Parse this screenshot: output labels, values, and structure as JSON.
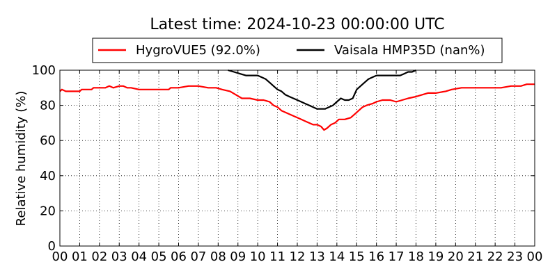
{
  "chart_data": {
    "type": "line",
    "title": "Latest time: 2024-10-23 00:00:00 UTC",
    "xlabel": "",
    "ylabel": "Relative humidity (%)",
    "xlim": [
      0,
      24
    ],
    "ylim": [
      0,
      100
    ],
    "x_ticks": [
      "00",
      "01",
      "02",
      "03",
      "04",
      "05",
      "06",
      "07",
      "08",
      "09",
      "10",
      "11",
      "12",
      "13",
      "14",
      "15",
      "16",
      "17",
      "18",
      "19",
      "20",
      "21",
      "22",
      "23",
      "00"
    ],
    "y_ticks": [
      0,
      20,
      40,
      60,
      80,
      100
    ],
    "grid": true,
    "legend_position": "top",
    "series": [
      {
        "name": "HygroVUE5 (92.0%)",
        "color": "#ff0000",
        "x": [
          0,
          0.1,
          0.3,
          0.5,
          1.0,
          1.1,
          1.6,
          1.7,
          2.3,
          2.5,
          2.7,
          3.0,
          3.2,
          3.4,
          3.6,
          4.0,
          4.2,
          4.5,
          5.0,
          5.5,
          5.6,
          6.0,
          6.5,
          7.0,
          7.5,
          7.9,
          8.2,
          8.6,
          8.9,
          9.2,
          9.6,
          10.0,
          10.3,
          10.6,
          10.8,
          11.0,
          11.2,
          11.4,
          11.6,
          11.8,
          12.0,
          12.2,
          12.4,
          12.6,
          12.8,
          13.0,
          13.2,
          13.35,
          13.5,
          13.7,
          13.9,
          14.1,
          14.4,
          14.7,
          14.9,
          15.1,
          15.3,
          15.5,
          15.8,
          16.0,
          16.3,
          16.7,
          17.0,
          17.3,
          17.6,
          18.0,
          18.3,
          18.6,
          19.0,
          19.5,
          19.8,
          20.3,
          21.0,
          21.8,
          22.3,
          22.8,
          23.3,
          23.6,
          24.0
        ],
        "y": [
          88,
          89,
          88,
          88,
          88,
          89,
          89,
          90,
          90,
          91,
          90,
          91,
          91,
          90,
          90,
          89,
          89,
          89,
          89,
          89,
          90,
          90,
          91,
          91,
          90,
          90,
          89,
          88,
          86,
          84,
          84,
          83,
          83,
          82,
          80,
          79,
          77,
          76,
          75,
          74,
          73,
          72,
          71,
          70,
          69,
          69,
          68,
          66,
          67,
          69,
          70,
          72,
          72,
          73,
          75,
          77,
          79,
          80,
          81,
          82,
          83,
          83,
          82,
          83,
          84,
          85,
          86,
          87,
          87,
          88,
          89,
          90,
          90,
          90,
          90,
          91,
          91,
          92,
          92
        ]
      },
      {
        "name": "Vaisala HMP35D (nan%)",
        "color": "#000000",
        "x": [
          8.5,
          8.8,
          9.1,
          9.4,
          9.7,
          10.0,
          10.2,
          10.4,
          10.6,
          10.8,
          11.0,
          11.2,
          11.4,
          11.6,
          11.8,
          12.0,
          12.2,
          12.4,
          12.6,
          12.8,
          13.0,
          13.2,
          13.4,
          13.6,
          13.8,
          14.0,
          14.2,
          14.4,
          14.6,
          14.8,
          15.0,
          15.3,
          15.6,
          15.8,
          16.0,
          16.3,
          16.7,
          17.0,
          17.2,
          17.4,
          17.6,
          17.8,
          18.0
        ],
        "y": [
          100,
          99,
          98,
          97,
          97,
          97,
          96,
          95,
          93,
          91,
          89,
          88,
          86,
          85,
          84,
          83,
          82,
          81,
          80,
          79,
          78,
          78,
          78,
          79,
          80,
          82,
          84,
          83,
          83,
          84,
          89,
          92,
          95,
          96,
          97,
          97,
          97,
          97,
          97,
          98,
          99,
          99,
          100
        ]
      }
    ]
  }
}
